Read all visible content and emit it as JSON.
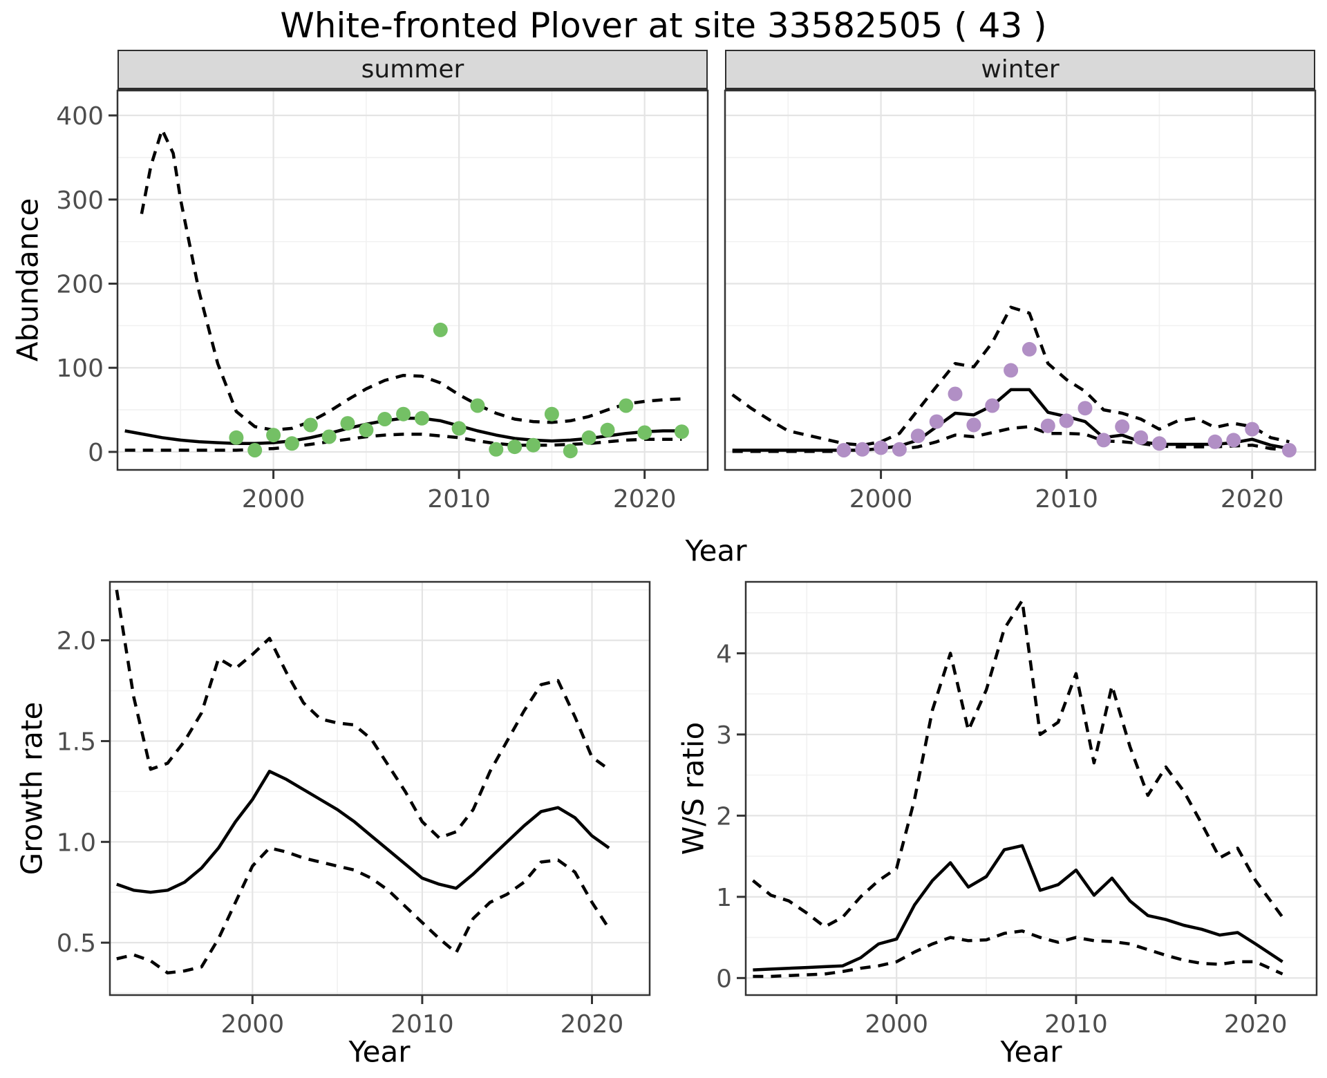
{
  "title": "White-fronted Plover at site 33582505 ( 43 )",
  "palette": {
    "summer_point": "#74c065",
    "winter_point": "#b18fc5",
    "line": "#000000",
    "strip_background": "#d9d9d9",
    "panel_border": "#333333",
    "grid_major": "#e4e4e4",
    "grid_minor": "#f1f1f1",
    "tick_text": "#4d4d4d"
  },
  "chart_data": {
    "abundance": {
      "type": "line+scatter",
      "xlabel": "Year",
      "ylabel": "Abundance",
      "xlim": [
        1991.6,
        2023.4
      ],
      "ylim": [
        0,
        400
      ],
      "x_ticks": [
        2000,
        2010,
        2020
      ],
      "y_ticks": [
        0,
        100,
        200,
        300,
        400
      ],
      "legend": "none",
      "grid": true,
      "facets": [
        {
          "label": "summer",
          "point_color": "#74c065",
          "points": {
            "x": [
              1998,
              1999,
              2000,
              2001,
              2002,
              2003,
              2004,
              2005,
              2006,
              2007,
              2008,
              2009,
              2010,
              2011,
              2012,
              2013,
              2014,
              2015,
              2016,
              2017,
              2018,
              2019,
              2020,
              2022
            ],
            "y": [
              17,
              2,
              20,
              10,
              32,
              18,
              34,
              26,
              39,
              45,
              40,
              145,
              28,
              55,
              3,
              6,
              8,
              45,
              1,
              17,
              26,
              55,
              23,
              24
            ]
          },
          "series": [
            {
              "name": "mean",
              "linetype": "solid",
              "x": [
                1992,
                1993,
                1994,
                1995,
                1996,
                1997,
                1998,
                1999,
                2000,
                2001,
                2002,
                2003,
                2004,
                2005,
                2006,
                2007,
                2008,
                2009,
                2010,
                2011,
                2012,
                2013,
                2014,
                2015,
                2016,
                2017,
                2018,
                2019,
                2020,
                2021,
                2022
              ],
              "y": [
                25,
                21,
                17,
                14,
                12,
                11,
                10,
                10,
                11,
                13,
                17,
                22,
                28,
                33,
                37,
                40,
                40,
                37,
                31,
                25,
                20,
                16,
                14,
                13,
                14,
                16,
                19,
                22,
                24,
                25,
                25
              ]
            },
            {
              "name": "upper_ci",
              "linetype": "dashed",
              "x": [
                1992.9,
                1993.4,
                1994,
                1994.6,
                1995,
                1996,
                1997,
                1998,
                1999,
                2000,
                2001,
                2002,
                2003,
                2004,
                2005,
                2006,
                2007,
                2008,
                2009,
                2010,
                2011,
                2012,
                2013,
                2014,
                2015,
                2016,
                2017,
                2018,
                2019,
                2020,
                2021,
                2022
              ],
              "y": [
                283,
                340,
                383,
                355,
                300,
                190,
                105,
                48,
                30,
                26,
                28,
                36,
                48,
                62,
                75,
                85,
                91,
                90,
                82,
                68,
                56,
                46,
                39,
                36,
                35,
                37,
                42,
                50,
                57,
                60,
                62,
                63
              ]
            },
            {
              "name": "lower_ci",
              "linetype": "dashed",
              "x": [
                1992,
                1993,
                1994,
                1995,
                1996,
                1997,
                1998,
                1999,
                2000,
                2001,
                2002,
                2003,
                2004,
                2005,
                2006,
                2007,
                2008,
                2009,
                2010,
                2011,
                2012,
                2013,
                2014,
                2015,
                2016,
                2017,
                2018,
                2019,
                2020,
                2021,
                2022
              ],
              "y": [
                2,
                2,
                2,
                2,
                2,
                2,
                2,
                3,
                4,
                6,
                9,
                12,
                15,
                18,
                20,
                21,
                21,
                19,
                17,
                13,
                10,
                8,
                8,
                8,
                9,
                10,
                12,
                14,
                15,
                15,
                15
              ]
            }
          ]
        },
        {
          "label": "winter",
          "point_color": "#b18fc5",
          "points": {
            "x": [
              1998,
              1999,
              2000,
              2001,
              2002,
              2003,
              2004,
              2005,
              2006,
              2007,
              2008,
              2009,
              2010,
              2011,
              2012,
              2013,
              2014,
              2015,
              2018,
              2019,
              2020,
              2022
            ],
            "y": [
              2,
              3,
              5,
              3,
              19,
              36,
              69,
              32,
              55,
              97,
              122,
              31,
              37,
              52,
              14,
              30,
              17,
              10,
              12,
              14,
              27,
              2
            ]
          },
          "series": [
            {
              "name": "mean",
              "linetype": "solid",
              "x": [
                1992,
                1993,
                1994,
                1995,
                1996,
                1997,
                1998,
                1999,
                2000,
                2001,
                2002,
                2003,
                2004,
                2005,
                2006,
                2007,
                2008,
                2009,
                2010,
                2011,
                2012,
                2013,
                2014,
                2015,
                2016,
                2017,
                2018,
                2019,
                2020,
                2021,
                2022
              ],
              "y": [
                2,
                2,
                2,
                2,
                2,
                2,
                2,
                2,
                4,
                7,
                14,
                30,
                46,
                44,
                55,
                74,
                74,
                47,
                42,
                36,
                17,
                20,
                12,
                9,
                9,
                9,
                9,
                11,
                15,
                8,
                4
              ]
            },
            {
              "name": "upper_ci",
              "linetype": "dashed",
              "x": [
                1992,
                1993,
                1994,
                1995,
                1996,
                1997,
                1998,
                1999,
                2000,
                2001,
                2002,
                2003,
                2004,
                2005,
                2006,
                2007,
                2008,
                2009,
                2010,
                2011,
                2012,
                2013,
                2014,
                2015,
                2016,
                2017,
                2018,
                2019,
                2020,
                2021,
                2022
              ],
              "y": [
                68,
                52,
                38,
                25,
                20,
                15,
                10,
                8,
                12,
                22,
                50,
                78,
                105,
                101,
                130,
                172,
                165,
                105,
                86,
                72,
                50,
                46,
                39,
                27,
                37,
                40,
                29,
                34,
                30,
                17,
                12
              ]
            },
            {
              "name": "lower_ci",
              "linetype": "dashed",
              "x": [
                1992,
                1993,
                1994,
                1995,
                1996,
                1997,
                1998,
                1999,
                2000,
                2001,
                2002,
                2003,
                2004,
                2005,
                2006,
                2007,
                2008,
                2009,
                2010,
                2011,
                2012,
                2013,
                2014,
                2015,
                2016,
                2017,
                2018,
                2019,
                2020,
                2021,
                2022
              ],
              "y": [
                0.5,
                0.5,
                0.5,
                0.5,
                0.5,
                0.5,
                0.5,
                0.5,
                1,
                3,
                6,
                12,
                20,
                18,
                23,
                28,
                30,
                22,
                22,
                21,
                13,
                12,
                10,
                7,
                6,
                6,
                6,
                7,
                8,
                4,
                2
              ]
            }
          ]
        }
      ]
    },
    "growth_rate": {
      "type": "line",
      "xlabel": "Year",
      "ylabel": "Growth rate",
      "xlim": [
        1991.6,
        2023.4
      ],
      "ylim": [
        0.3,
        2.25
      ],
      "x_ticks": [
        2000,
        2010,
        2020
      ],
      "y_ticks": [
        0.5,
        1.0,
        1.5,
        2.0
      ],
      "y_tick_labels": [
        "0.5",
        "1.0",
        "1.5",
        "2.0"
      ],
      "grid": true,
      "series": [
        {
          "name": "mean",
          "linetype": "solid",
          "x": [
            1992,
            1993,
            1994,
            1995,
            1996,
            1997,
            1998,
            1999,
            2000,
            2001,
            2002,
            2003,
            2004,
            2005,
            2006,
            2007,
            2008,
            2009,
            2010,
            2011,
            2012,
            2013,
            2014,
            2015,
            2016,
            2017,
            2018,
            2019,
            2020,
            2021
          ],
          "y": [
            0.79,
            0.76,
            0.75,
            0.76,
            0.8,
            0.87,
            0.97,
            1.1,
            1.21,
            1.35,
            1.31,
            1.26,
            1.21,
            1.16,
            1.1,
            1.03,
            0.96,
            0.89,
            0.82,
            0.79,
            0.77,
            0.84,
            0.92,
            1.0,
            1.08,
            1.15,
            1.17,
            1.12,
            1.03,
            0.97
          ]
        },
        {
          "name": "upper_ci",
          "linetype": "dashed",
          "x": [
            1992,
            1993,
            1994,
            1995,
            1996,
            1997,
            1998,
            1999,
            2000,
            2001,
            2002,
            2003,
            2004,
            2005,
            2006,
            2007,
            2008,
            2009,
            2010,
            2011,
            2012,
            2013,
            2014,
            2015,
            2016,
            2017,
            2018,
            2019,
            2020,
            2021
          ],
          "y": [
            2.25,
            1.72,
            1.36,
            1.39,
            1.5,
            1.64,
            1.91,
            1.86,
            1.93,
            2.01,
            1.84,
            1.69,
            1.61,
            1.59,
            1.58,
            1.51,
            1.38,
            1.25,
            1.1,
            1.02,
            1.05,
            1.16,
            1.35,
            1.5,
            1.65,
            1.78,
            1.8,
            1.62,
            1.42,
            1.36
          ]
        },
        {
          "name": "lower_ci",
          "linetype": "dashed",
          "x": [
            1992,
            1993,
            1994,
            1995,
            1996,
            1997,
            1998,
            1999,
            2000,
            2001,
            2002,
            2003,
            2004,
            2005,
            2006,
            2007,
            2008,
            2009,
            2010,
            2011,
            2012,
            2013,
            2014,
            2015,
            2016,
            2017,
            2018,
            2019,
            2020,
            2021
          ],
          "y": [
            0.42,
            0.44,
            0.41,
            0.35,
            0.36,
            0.38,
            0.52,
            0.7,
            0.88,
            0.97,
            0.95,
            0.92,
            0.9,
            0.88,
            0.86,
            0.82,
            0.76,
            0.68,
            0.6,
            0.52,
            0.45,
            0.62,
            0.7,
            0.74,
            0.8,
            0.9,
            0.91,
            0.85,
            0.7,
            0.57
          ]
        }
      ]
    },
    "ws_ratio": {
      "type": "line",
      "xlabel": "Year",
      "ylabel": "W/S ratio",
      "xlim": [
        1991.6,
        2023.4
      ],
      "ylim": [
        0,
        4.65
      ],
      "x_ticks": [
        2000,
        2010,
        2020
      ],
      "y_ticks": [
        0,
        1,
        2,
        3,
        4
      ],
      "grid": true,
      "series": [
        {
          "name": "mean",
          "linetype": "solid",
          "x": [
            1992,
            1993,
            1994,
            1995,
            1996,
            1997,
            1998,
            1999,
            2000,
            2001,
            2002,
            2003,
            2004,
            2005,
            2006,
            2007,
            2008,
            2009,
            2010,
            2011,
            2012,
            2013,
            2014,
            2015,
            2016,
            2017,
            2018,
            2019,
            2020,
            2021.5
          ],
          "y": [
            0.1,
            0.11,
            0.12,
            0.13,
            0.14,
            0.15,
            0.25,
            0.42,
            0.48,
            0.9,
            1.2,
            1.42,
            1.12,
            1.25,
            1.58,
            1.63,
            1.08,
            1.15,
            1.33,
            1.02,
            1.23,
            0.95,
            0.77,
            0.72,
            0.65,
            0.6,
            0.53,
            0.56,
            0.42,
            0.2
          ]
        },
        {
          "name": "upper_ci",
          "linetype": "dashed",
          "x": [
            1992,
            1993,
            1994,
            1995,
            1996,
            1997,
            1998,
            1999,
            2000,
            2001,
            2002,
            2003,
            2004,
            2005,
            2006,
            2007,
            2008,
            2009,
            2010,
            2011,
            2012,
            2013,
            2014,
            2015,
            2016,
            2017,
            2018,
            2019,
            2020,
            2021.6
          ],
          "y": [
            1.2,
            1.02,
            0.95,
            0.8,
            0.63,
            0.75,
            1.0,
            1.2,
            1.35,
            2.2,
            3.3,
            4.0,
            3.05,
            3.55,
            4.3,
            4.65,
            3.0,
            3.15,
            3.75,
            2.65,
            3.6,
            2.85,
            2.25,
            2.6,
            2.3,
            1.9,
            1.48,
            1.6,
            1.2,
            0.72
          ]
        },
        {
          "name": "lower_ci",
          "linetype": "dashed",
          "x": [
            1992,
            1993,
            1994,
            1995,
            1996,
            1997,
            1998,
            1999,
            2000,
            2001,
            2002,
            2003,
            2004,
            2005,
            2006,
            2007,
            2008,
            2009,
            2010,
            2011,
            2012,
            2013,
            2014,
            2015,
            2016,
            2017,
            2018,
            2019,
            2020,
            2021.5
          ],
          "y": [
            0.02,
            0.02,
            0.03,
            0.04,
            0.05,
            0.08,
            0.12,
            0.15,
            0.2,
            0.32,
            0.42,
            0.5,
            0.46,
            0.47,
            0.55,
            0.58,
            0.5,
            0.44,
            0.5,
            0.46,
            0.45,
            0.42,
            0.35,
            0.28,
            0.22,
            0.18,
            0.17,
            0.2,
            0.2,
            0.05
          ]
        }
      ]
    }
  }
}
